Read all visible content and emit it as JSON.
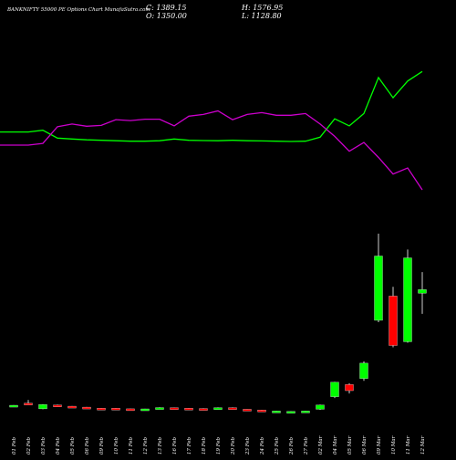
{
  "header": {
    "title": "BANKNIFTY 55000 PE Options Chart MunafaSutra.com",
    "close_text": "C: 1389.15",
    "open_text": "O: 1350.00",
    "high_text": "H: 1576.95",
    "low_text": "L: 1128.80"
  },
  "colors": {
    "background": "#000000",
    "bull": "#00ff00",
    "bear": "#ff0000",
    "line_green": "#00ff00",
    "line_magenta": "#cc00cc",
    "text": "#ffffff"
  },
  "chart_data": {
    "type": "candlestick",
    "categories": [
      "01 Feb",
      "02 Feb",
      "03 Feb",
      "04 Feb",
      "05 Feb",
      "06 Feb",
      "09 Feb",
      "10 Feb",
      "11 Feb",
      "12 Feb",
      "13 Feb",
      "16 Feb",
      "17 Feb",
      "18 Feb",
      "19 Feb",
      "20 Feb",
      "23 Feb",
      "24 Feb",
      "25 Feb",
      "26 Feb",
      "27 Feb",
      "02 Mar",
      "04 Mar",
      "05 Mar",
      "06 Mar",
      "09 Mar",
      "10 Mar",
      "11 Mar",
      "12 Mar"
    ],
    "ohlc": [
      {
        "open": 145,
        "high": 150,
        "low": 132,
        "close": 148
      },
      {
        "open": 170,
        "high": 205,
        "low": 165,
        "close": 166
      },
      {
        "open": 110,
        "high": 160,
        "low": 105,
        "close": 155
      },
      {
        "open": 150,
        "high": 155,
        "low": 138,
        "close": 140
      },
      {
        "open": 138,
        "high": 140,
        "low": 125,
        "close": 127
      },
      {
        "open": 128,
        "high": 130,
        "low": 118,
        "close": 120
      },
      {
        "open": 116,
        "high": 118,
        "low": 112,
        "close": 113
      },
      {
        "open": 116,
        "high": 118,
        "low": 108,
        "close": 110
      },
      {
        "open": 110,
        "high": 112,
        "low": 105,
        "close": 107
      },
      {
        "open": 106,
        "high": 110,
        "low": 104,
        "close": 109
      },
      {
        "open": 114,
        "high": 126,
        "low": 112,
        "close": 123
      },
      {
        "open": 122,
        "high": 124,
        "low": 114,
        "close": 116
      },
      {
        "open": 116,
        "high": 118,
        "low": 108,
        "close": 110
      },
      {
        "open": 113,
        "high": 115,
        "low": 106,
        "close": 108
      },
      {
        "open": 110,
        "high": 125,
        "low": 108,
        "close": 122
      },
      {
        "open": 122,
        "high": 125,
        "low": 110,
        "close": 112
      },
      {
        "open": 105,
        "high": 106,
        "low": 97,
        "close": 99
      },
      {
        "open": 96,
        "high": 99,
        "low": 90,
        "close": 92
      },
      {
        "open": 83,
        "high": 89,
        "low": 80,
        "close": 86
      },
      {
        "open": 80,
        "high": 85,
        "low": 78,
        "close": 82
      },
      {
        "open": 82,
        "high": 88,
        "low": 80,
        "close": 86
      },
      {
        "open": 105,
        "high": 155,
        "low": 100,
        "close": 150
      },
      {
        "open": 240,
        "high": 400,
        "low": 225,
        "close": 395
      },
      {
        "open": 370,
        "high": 385,
        "low": 275,
        "close": 305
      },
      {
        "open": 435,
        "high": 620,
        "low": 410,
        "close": 600
      },
      {
        "open": 1060,
        "high": 1990,
        "low": 1040,
        "close": 1750
      },
      {
        "open": 1320,
        "high": 1420,
        "low": 770,
        "close": 790
      },
      {
        "open": 830,
        "high": 1820,
        "low": 820,
        "close": 1730
      },
      {
        "open": 1350,
        "high": 1576.95,
        "low": 1128.8,
        "close": 1389.15
      }
    ],
    "volume_lines": [
      {
        "color": "green",
        "values": [
          0.62,
          0.62,
          0.6,
          0.69,
          0.7,
          0.71,
          0.715,
          0.72,
          0.725,
          0.725,
          0.72,
          0.7,
          0.715,
          0.718,
          0.72,
          0.715,
          0.72,
          0.722,
          0.725,
          0.728,
          0.725,
          0.68,
          0.47,
          0.55,
          0.41,
          0.0,
          0.23,
          0.04,
          -0.07
        ]
      },
      {
        "color": "magenta",
        "values": [
          0.77,
          0.77,
          0.75,
          0.56,
          0.53,
          0.555,
          0.545,
          0.48,
          0.49,
          0.475,
          0.475,
          0.55,
          0.44,
          0.42,
          0.38,
          0.48,
          0.42,
          0.4,
          0.43,
          0.43,
          0.41,
          0.53,
          0.67,
          0.84,
          0.74,
          0.91,
          1.1,
          1.03,
          1.28
        ]
      }
    ]
  }
}
